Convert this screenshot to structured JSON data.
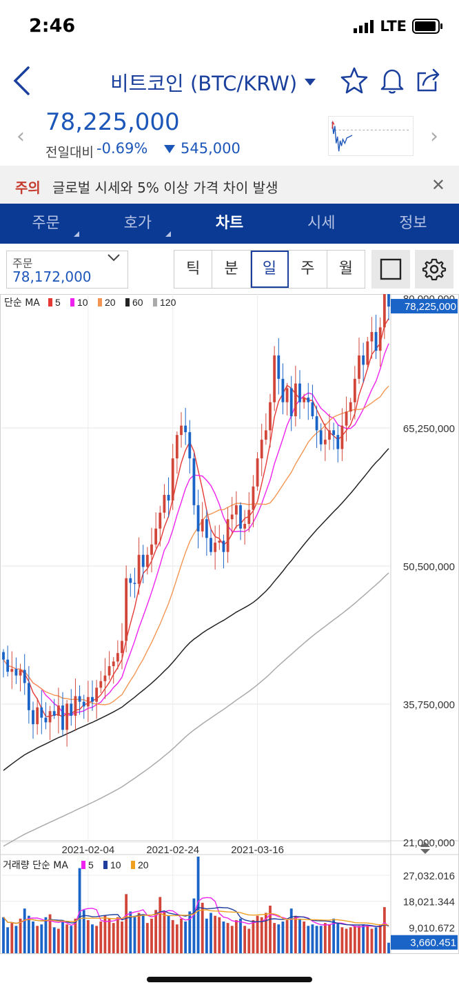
{
  "status": {
    "time": "2:46",
    "carrier": "LTE"
  },
  "header": {
    "title": "비트코인 (BTC/KRW)"
  },
  "price": {
    "current": "78,225,000",
    "change_label": "전일대비",
    "change_pct": "-0.69%",
    "change_amt": "545,000"
  },
  "banner": {
    "tag": "주의",
    "text": "글로벌 시세와 5% 이상 가격 차이 발생",
    "close": "✕"
  },
  "tabs": [
    {
      "label": "주문"
    },
    {
      "label": "호가"
    },
    {
      "label": "차트"
    },
    {
      "label": "시세"
    },
    {
      "label": "정보"
    }
  ],
  "active_tab": "차트",
  "toolbar": {
    "order_label": "주문",
    "order_value": "78,172,000",
    "periods": [
      "틱",
      "분",
      "일",
      "주",
      "월"
    ],
    "active_period": "일"
  },
  "chart_data": {
    "type": "candlestick",
    "price_legend": {
      "prefix": "단순 MA",
      "periods": [
        "5",
        "10",
        "20",
        "60",
        "120"
      ],
      "colors": [
        "#e53935",
        "#ee22ee",
        "#f39552",
        "#222222",
        "#aaaaaa"
      ]
    },
    "volume_legend": {
      "prefix": "거래량 단순 MA",
      "periods": [
        "5",
        "10",
        "20"
      ],
      "colors": [
        "#ee22ee",
        "#1f3d9c",
        "#f0a020"
      ]
    },
    "y_ticks": [
      "65,250,000",
      "50,500,000",
      "35,750,000",
      "21,000,000"
    ],
    "y_tick_values": [
      65250000,
      50500000,
      35750000,
      21000000
    ],
    "y_top_label": "80,000,000",
    "current_label": "78,225,000",
    "current_value": 78225000,
    "x_ticks": [
      "2021-02-04",
      "2021-02-24",
      "2021-03-16"
    ],
    "volume_ticks": [
      "27,032.016",
      "18,021.344",
      "9,010.672"
    ],
    "volume_tick_values": [
      27032.016,
      18021.344,
      9010.672
    ],
    "volume_current_label": "3,660.451",
    "volume_current_value": 3660.451,
    "closes": [
      40500000,
      39200000,
      39500000,
      38800000,
      39400000,
      38000000,
      35100000,
      33600000,
      35400000,
      34300000,
      33800000,
      35000000,
      34500000,
      35600000,
      33000000,
      35800000,
      34500000,
      36600000,
      36000000,
      35500000,
      36500000,
      36000000,
      37500000,
      38200000,
      38800000,
      39800000,
      40300000,
      41200000,
      42500000,
      49200000,
      48700000,
      48600000,
      51700000,
      50400000,
      51700000,
      52800000,
      54500000,
      56200000,
      58100000,
      57500000,
      62000000,
      64500000,
      65500000,
      64800000,
      62000000,
      57000000,
      54200000,
      55500000,
      53500000,
      52000000,
      53000000,
      53200000,
      52000000,
      55500000,
      56000000,
      57000000,
      54500000,
      55000000,
      56500000,
      59000000,
      62000000,
      64000000,
      65000000,
      68000000,
      73000000,
      70500000,
      68000000,
      69500000,
      66500000,
      70000000,
      68000000,
      68500000,
      68000000,
      66500000,
      65000000,
      63500000,
      64000000,
      65000000,
      64500000,
      63000000,
      65500000,
      67000000,
      68000000,
      70500000,
      73000000,
      72000000,
      74500000,
      75500000,
      73500000,
      76000000,
      81500000,
      78225000
    ],
    "volumes": [
      12500,
      9000,
      10500,
      9500,
      12000,
      15500,
      13000,
      11000,
      9500,
      10000,
      12500,
      13500,
      9000,
      8500,
      11500,
      10000,
      9500,
      12000,
      29500,
      15000,
      11500,
      10000,
      9500,
      11000,
      13000,
      12000,
      10500,
      12500,
      11000,
      20500,
      14500,
      13000,
      14000,
      13500,
      10500,
      12000,
      15000,
      19500,
      14500,
      13000,
      11500,
      10000,
      12000,
      11000,
      14500,
      19000,
      33500,
      17500,
      12000,
      14000,
      13000,
      12500,
      11000,
      10500,
      9500,
      11500,
      12000,
      9500,
      8500,
      11500,
      13000,
      12500,
      14000,
      16500,
      10500,
      10000,
      11000,
      11500,
      15500,
      13000,
      12000,
      11000,
      9500,
      10000,
      9500,
      9500,
      10500,
      10000,
      12000,
      10500,
      9000,
      8500,
      9000,
      9500,
      9500,
      10000,
      9500,
      8500,
      9000,
      10000,
      16000,
      3660.451
    ]
  }
}
